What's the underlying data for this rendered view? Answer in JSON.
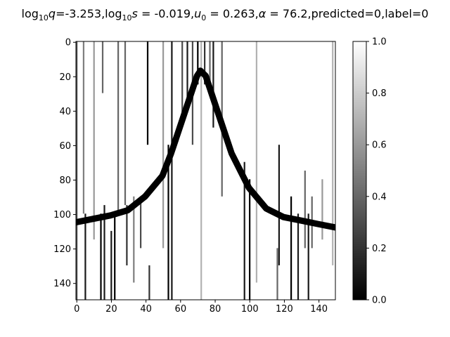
{
  "title": {
    "logq_label": "q",
    "logq_value": "-3.253",
    "logs_label": "s",
    "logs_value": "-0.019",
    "u0_label": "u",
    "u0_sub": "0",
    "u0_value": "0.263",
    "alpha_label": "α",
    "alpha_value": "76.2",
    "predicted": "predicted=0",
    "label": "label=0",
    "log_prefix": "log",
    "log_base": "10"
  },
  "chart_data": {
    "type": "heatmap",
    "colormap": "gray",
    "x_ticks": [
      "0",
      "20",
      "40",
      "60",
      "80",
      "100",
      "120",
      "140"
    ],
    "y_ticks": [
      "0",
      "20",
      "40",
      "60",
      "80",
      "100",
      "120",
      "140"
    ],
    "xlim": [
      0,
      150
    ],
    "ylim": [
      150,
      0
    ],
    "colorbar": {
      "range": [
        0.0,
        1.0
      ],
      "ticks": [
        "0.0",
        "0.2",
        "0.4",
        "0.6",
        "0.8",
        "1.0"
      ]
    },
    "curve": {
      "description_points_x": [
        0,
        10,
        20,
        30,
        40,
        50,
        55,
        60,
        65,
        70,
        72,
        75,
        80,
        85,
        90,
        100,
        110,
        120,
        130,
        140,
        150
      ],
      "description_points_y": [
        105,
        103,
        101,
        98,
        90,
        78,
        65,
        50,
        35,
        20,
        17,
        20,
        35,
        50,
        65,
        85,
        97,
        102,
        104,
        106,
        108
      ]
    },
    "dark_columns": [
      {
        "x": 0,
        "y0": 0,
        "y1": 150,
        "s": 0.7
      },
      {
        "x": 4,
        "y0": 0,
        "y1": 100,
        "s": 0.5
      },
      {
        "x": 5,
        "y0": 100,
        "y1": 150,
        "s": 0.9
      },
      {
        "x": 10,
        "y0": 0,
        "y1": 115,
        "s": 0.4
      },
      {
        "x": 14,
        "y0": 100,
        "y1": 150,
        "s": 1.0
      },
      {
        "x": 15,
        "y0": 0,
        "y1": 30,
        "s": 0.6
      },
      {
        "x": 16,
        "y0": 95,
        "y1": 150,
        "s": 0.9
      },
      {
        "x": 20,
        "y0": 110,
        "y1": 150,
        "s": 0.9
      },
      {
        "x": 22,
        "y0": 100,
        "y1": 150,
        "s": 1.0
      },
      {
        "x": 24,
        "y0": 0,
        "y1": 100,
        "s": 0.6
      },
      {
        "x": 28,
        "y0": 0,
        "y1": 95,
        "s": 0.6
      },
      {
        "x": 29,
        "y0": 95,
        "y1": 130,
        "s": 0.8
      },
      {
        "x": 33,
        "y0": 90,
        "y1": 140,
        "s": 0.5
      },
      {
        "x": 37,
        "y0": 90,
        "y1": 120,
        "s": 0.7
      },
      {
        "x": 41,
        "y0": 0,
        "y1": 60,
        "s": 1.0
      },
      {
        "x": 42,
        "y0": 130,
        "y1": 150,
        "s": 0.8
      },
      {
        "x": 50,
        "y0": 0,
        "y1": 120,
        "s": 0.4
      },
      {
        "x": 53,
        "y0": 60,
        "y1": 150,
        "s": 1.0
      },
      {
        "x": 55,
        "y0": 0,
        "y1": 150,
        "s": 0.9
      },
      {
        "x": 61,
        "y0": 0,
        "y1": 45,
        "s": 0.7
      },
      {
        "x": 64,
        "y0": 0,
        "y1": 40,
        "s": 0.9
      },
      {
        "x": 67,
        "y0": 0,
        "y1": 60,
        "s": 0.7
      },
      {
        "x": 70,
        "y0": 0,
        "y1": 25,
        "s": 1.0
      },
      {
        "x": 72,
        "y0": 0,
        "y1": 150,
        "s": 0.3
      },
      {
        "x": 74,
        "y0": 0,
        "y1": 25,
        "s": 0.8
      },
      {
        "x": 77,
        "y0": 0,
        "y1": 30,
        "s": 0.6
      },
      {
        "x": 79,
        "y0": 0,
        "y1": 50,
        "s": 0.9
      },
      {
        "x": 84,
        "y0": 0,
        "y1": 90,
        "s": 0.6
      },
      {
        "x": 97,
        "y0": 70,
        "y1": 150,
        "s": 0.9
      },
      {
        "x": 100,
        "y0": 80,
        "y1": 150,
        "s": 1.0
      },
      {
        "x": 104,
        "y0": 0,
        "y1": 140,
        "s": 0.3
      },
      {
        "x": 117,
        "y0": 60,
        "y1": 130,
        "s": 0.9
      },
      {
        "x": 116,
        "y0": 120,
        "y1": 150,
        "s": 0.6
      },
      {
        "x": 124,
        "y0": 90,
        "y1": 150,
        "s": 1.0
      },
      {
        "x": 128,
        "y0": 100,
        "y1": 150,
        "s": 0.9
      },
      {
        "x": 132,
        "y0": 75,
        "y1": 120,
        "s": 0.6
      },
      {
        "x": 134,
        "y0": 100,
        "y1": 150,
        "s": 0.9
      },
      {
        "x": 136,
        "y0": 90,
        "y1": 120,
        "s": 0.6
      },
      {
        "x": 142,
        "y0": 80,
        "y1": 115,
        "s": 0.4
      },
      {
        "x": 148,
        "y0": 0,
        "y1": 130,
        "s": 0.3
      }
    ]
  }
}
